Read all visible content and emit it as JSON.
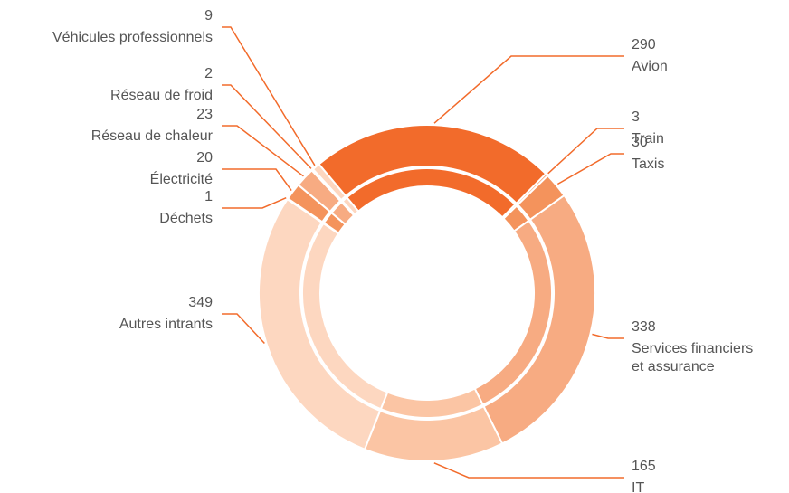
{
  "chart_data": {
    "type": "donut",
    "categories": [
      "Avion",
      "Train",
      "Taxis",
      "Services financiers\net assurance",
      "IT",
      "Autres intrants",
      "Déchets",
      "Électricité",
      "Réseau de chaleur",
      "Réseau de froid",
      "Véhicules professionnels"
    ],
    "values": [
      290,
      3,
      30,
      338,
      165,
      349,
      1,
      20,
      23,
      2,
      9
    ],
    "colors": [
      "#f26b2b",
      "#f4935c",
      "#f4935c",
      "#f7ab82",
      "#fbc5a4",
      "#fdd7c0",
      "#f4935c",
      "#f4935c",
      "#f7ab82",
      "#fbc5a4",
      "#fdd7c0"
    ]
  }
}
